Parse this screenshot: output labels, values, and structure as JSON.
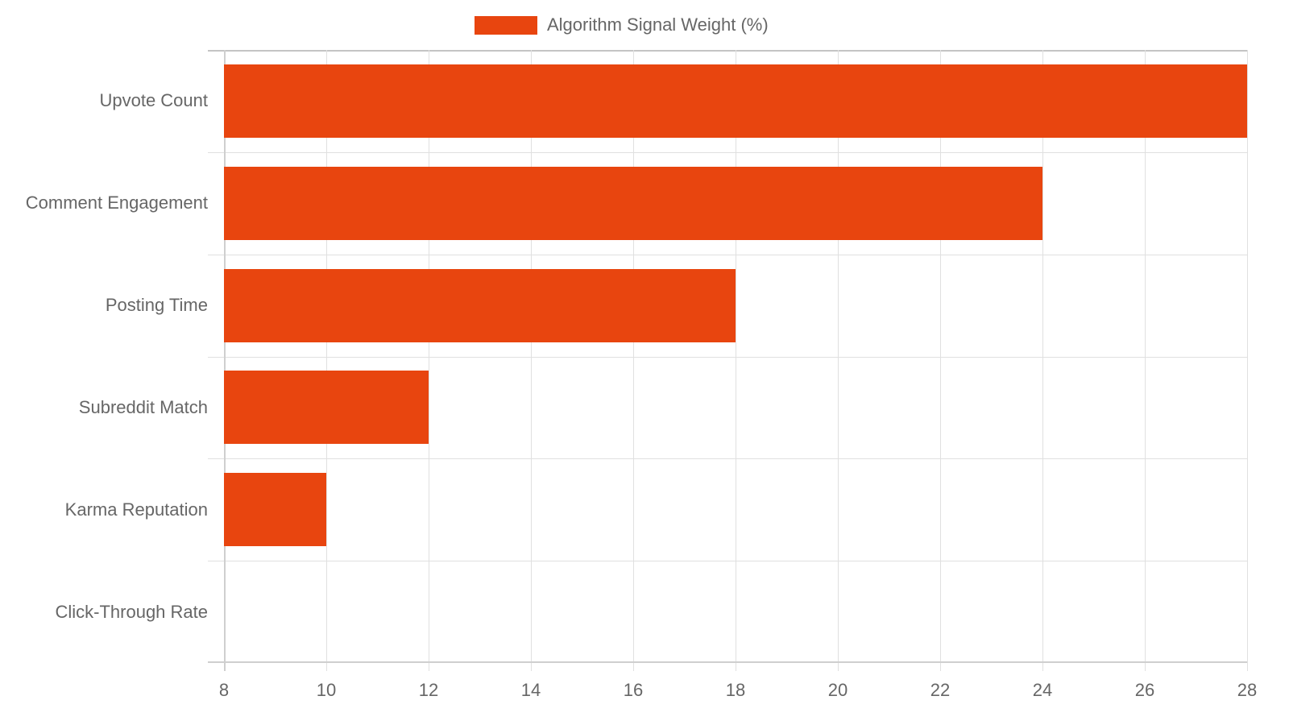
{
  "chart_data": {
    "type": "bar",
    "orientation": "horizontal",
    "title": "",
    "xlabel": "",
    "ylabel": "",
    "xlim": [
      8,
      28
    ],
    "xticks": [
      8,
      10,
      12,
      14,
      16,
      18,
      20,
      22,
      24,
      26,
      28
    ],
    "grid": true,
    "legend_position": "top",
    "categories": [
      "Upvote Count",
      "Comment Engagement",
      "Posting Time",
      "Subreddit Match",
      "Karma Reputation",
      "Click-Through Rate"
    ],
    "series": [
      {
        "name": "Algorithm Signal Weight (%)",
        "color": "#e8450f",
        "values": [
          28,
          24,
          18,
          12,
          10,
          8
        ]
      }
    ]
  },
  "legend": {
    "label": "Algorithm Signal Weight (%)",
    "color": "#e8450f"
  },
  "ticks": [
    "8",
    "10",
    "12",
    "14",
    "16",
    "18",
    "20",
    "22",
    "24",
    "26",
    "28"
  ]
}
